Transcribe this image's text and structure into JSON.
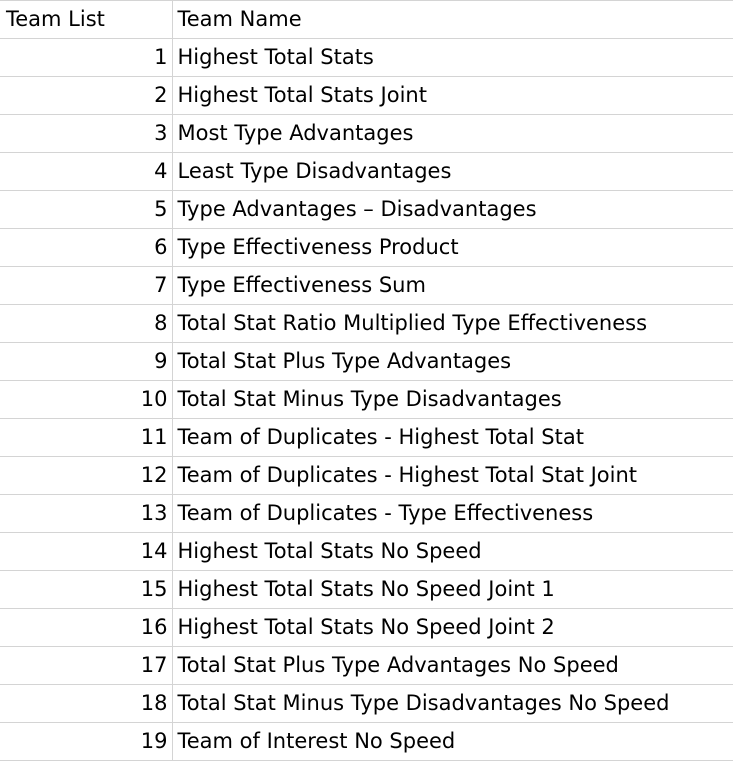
{
  "sheet": {
    "header": {
      "col1": "Team List",
      "col2": "Team Name"
    },
    "rows": [
      {
        "num": "1",
        "name": "Highest Total Stats"
      },
      {
        "num": "2",
        "name": "Highest Total Stats Joint"
      },
      {
        "num": "3",
        "name": "Most Type Advantages"
      },
      {
        "num": "4",
        "name": "Least Type Disadvantages"
      },
      {
        "num": "5",
        "name": "Type Advantages – Disadvantages"
      },
      {
        "num": "6",
        "name": "Type Effectiveness Product"
      },
      {
        "num": "7",
        "name": "Type Effectiveness Sum"
      },
      {
        "num": "8",
        "name": "Total Stat Ratio Multiplied Type Effectiveness"
      },
      {
        "num": "9",
        "name": "Total Stat Plus Type Advantages"
      },
      {
        "num": "10",
        "name": "Total Stat Minus Type Disadvantages"
      },
      {
        "num": "11",
        "name": "Team of Duplicates - Highest Total Stat"
      },
      {
        "num": "12",
        "name": "Team of Duplicates - Highest Total Stat Joint"
      },
      {
        "num": "13",
        "name": "Team of Duplicates - Type Effectiveness"
      },
      {
        "num": "14",
        "name": "Highest Total Stats No Speed"
      },
      {
        "num": "15",
        "name": "Highest Total Stats No Speed Joint 1"
      },
      {
        "num": "16",
        "name": "Highest Total Stats No Speed Joint 2"
      },
      {
        "num": "17",
        "name": "Total Stat Plus Type Advantages No Speed"
      },
      {
        "num": "18",
        "name": "Total Stat Minus Type Disadvantages No Speed"
      },
      {
        "num": "19",
        "name": "Team of Interest No Speed"
      }
    ]
  }
}
